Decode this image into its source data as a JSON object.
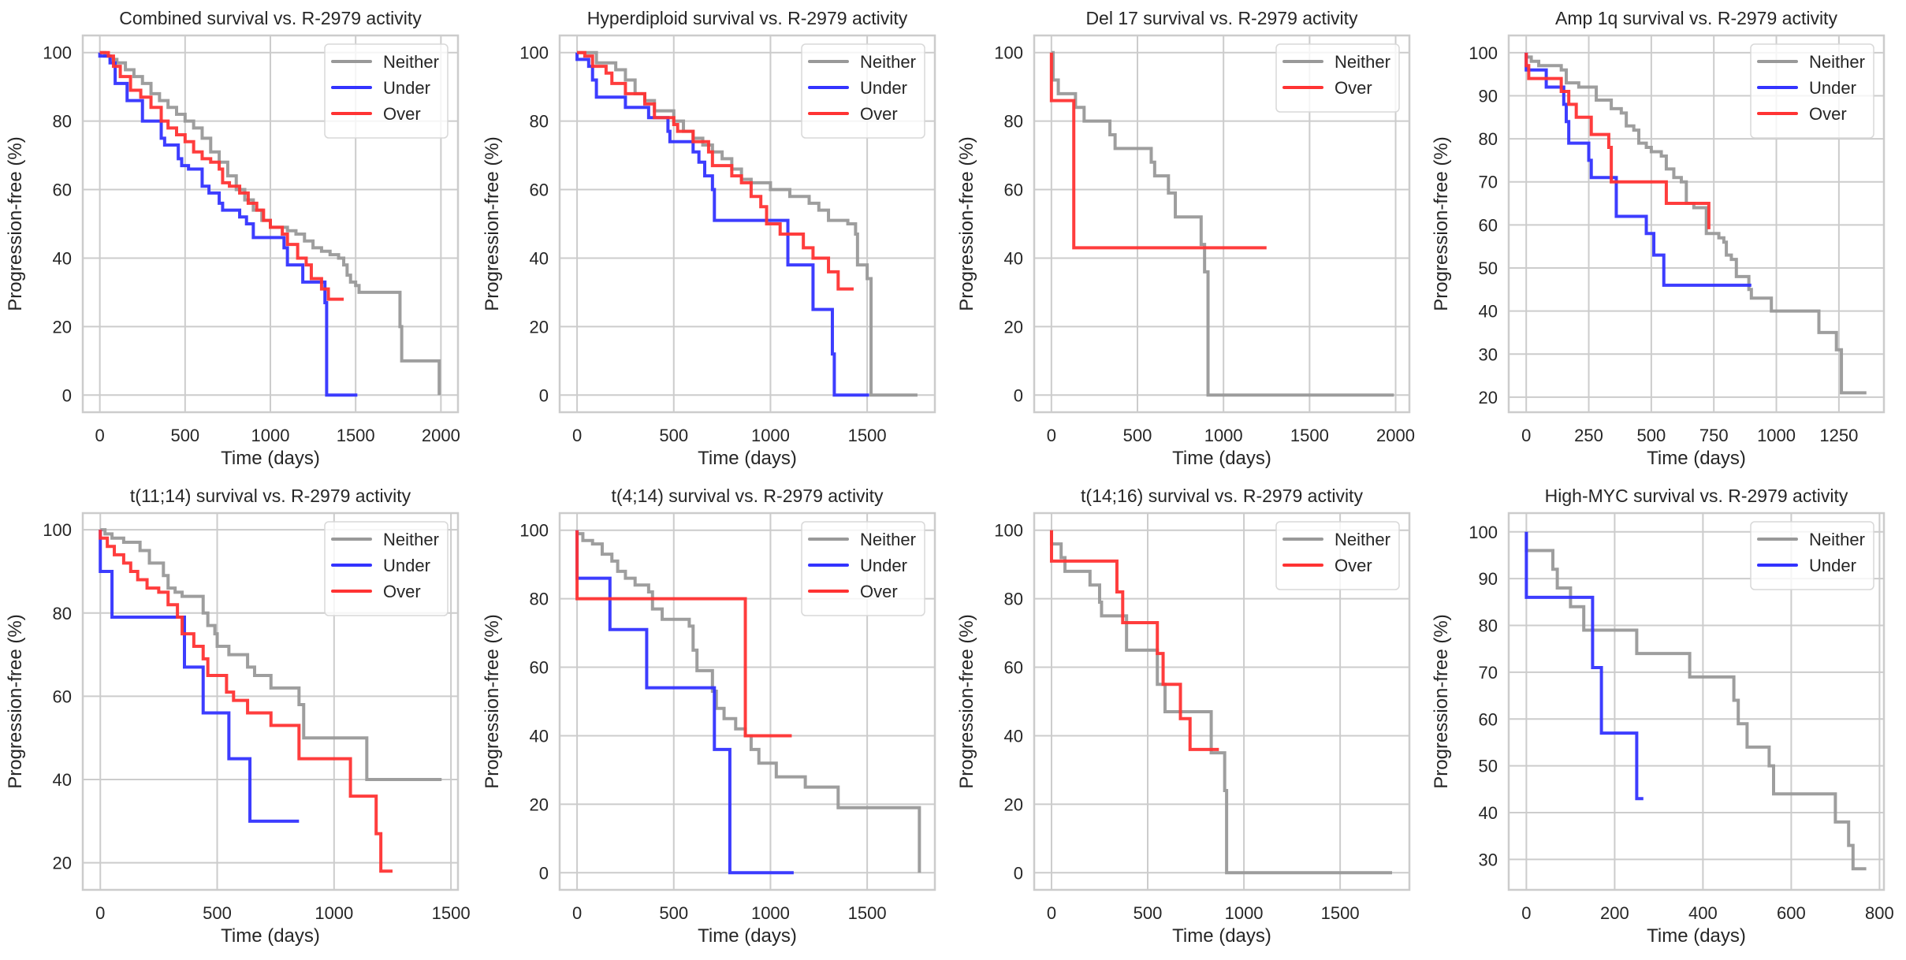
{
  "figure": {
    "shared_xlabel": "Time (days)",
    "shared_ylabel": "Progression-free (%)",
    "colors": {
      "Neither": "#999999",
      "Under": "#3333ff",
      "Over": "#ff3333",
      "grid": "#cccccc",
      "frame": "#cccccc"
    }
  },
  "chart_data": [
    {
      "type": "line",
      "step": true,
      "title": "Combined survival vs. R-2979 activity",
      "xlabel": "Time (days)",
      "ylabel": "Progression-free (%)",
      "xlim": [
        -100,
        2100
      ],
      "ylim": [
        -5,
        105
      ],
      "xticks": [
        0,
        500,
        1000,
        1500,
        2000
      ],
      "yticks": [
        0,
        20,
        40,
        60,
        80,
        100
      ],
      "grid": true,
      "legend": "top-right",
      "series": [
        {
          "name": "Neither",
          "x": [
            0,
            30,
            60,
            100,
            150,
            200,
            250,
            300,
            350,
            400,
            450,
            500,
            550,
            600,
            650,
            700,
            750,
            800,
            850,
            900,
            950,
            1000,
            1050,
            1100,
            1150,
            1200,
            1250,
            1300,
            1350,
            1400,
            1430,
            1450,
            1470,
            1500,
            1520,
            1760,
            1770,
            1990
          ],
          "y": [
            100,
            99,
            98,
            97,
            95,
            93,
            91,
            88,
            86,
            84,
            82,
            80,
            78,
            75,
            71,
            68,
            64,
            60,
            57,
            54,
            51,
            49,
            49,
            48,
            47,
            45,
            43,
            42,
            41,
            40,
            38,
            35,
            33,
            32,
            30,
            20,
            10,
            0
          ]
        },
        {
          "name": "Under",
          "x": [
            0,
            60,
            90,
            160,
            250,
            360,
            380,
            460,
            480,
            520,
            600,
            640,
            700,
            720,
            820,
            860,
            900,
            1050,
            1080,
            1100,
            1190,
            1320,
            1330,
            1510
          ],
          "y": [
            99,
            97,
            91,
            86,
            80,
            75,
            73,
            69,
            67,
            66,
            61,
            59,
            56,
            54,
            52,
            50,
            46,
            46,
            43,
            38,
            33,
            27,
            0,
            0
          ]
        },
        {
          "name": "Over",
          "x": [
            0,
            50,
            80,
            120,
            180,
            240,
            300,
            360,
            400,
            450,
            500,
            550,
            600,
            650,
            700,
            720,
            760,
            820,
            870,
            920,
            960,
            1000,
            1070,
            1100,
            1160,
            1210,
            1240,
            1300,
            1340,
            1430
          ],
          "y": [
            100,
            99,
            96,
            93,
            89,
            87,
            84,
            80,
            78,
            76,
            74,
            71,
            69,
            68,
            66,
            62,
            61,
            59,
            56,
            54,
            51,
            49,
            47,
            44,
            40,
            38,
            34,
            31,
            28,
            28
          ]
        }
      ]
    },
    {
      "type": "line",
      "step": true,
      "title": "Hyperdiploid survival vs. R-2979 activity",
      "xlabel": "Time (days)",
      "ylabel": "Progression-free (%)",
      "xlim": [
        -90,
        1850
      ],
      "ylim": [
        -5,
        105
      ],
      "xticks": [
        0,
        500,
        1000,
        1500
      ],
      "yticks": [
        0,
        20,
        40,
        60,
        80,
        100
      ],
      "grid": true,
      "legend": "top-right",
      "series": [
        {
          "name": "Neither",
          "x": [
            0,
            100,
            200,
            250,
            300,
            350,
            400,
            500,
            550,
            600,
            650,
            700,
            750,
            800,
            850,
            900,
            1000,
            1100,
            1200,
            1250,
            1300,
            1400,
            1440,
            1450,
            1500,
            1520,
            1760
          ],
          "y": [
            100,
            97,
            95,
            92,
            88,
            86,
            83,
            80,
            77,
            75,
            73,
            71,
            69,
            66,
            63,
            62,
            60,
            58,
            56,
            54,
            51,
            50,
            47,
            38,
            34,
            0,
            0
          ]
        },
        {
          "name": "Under",
          "x": [
            0,
            60,
            80,
            100,
            250,
            370,
            470,
            480,
            600,
            630,
            660,
            700,
            710,
            1090,
            1220,
            1320,
            1330,
            1510
          ],
          "y": [
            98,
            96,
            92,
            87,
            84,
            81,
            77,
            74,
            71,
            68,
            64,
            60,
            51,
            38,
            25,
            12,
            0,
            0
          ]
        },
        {
          "name": "Over",
          "x": [
            0,
            40,
            80,
            150,
            180,
            250,
            350,
            400,
            500,
            520,
            600,
            680,
            700,
            800,
            850,
            900,
            950,
            980,
            1050,
            1170,
            1220,
            1300,
            1350,
            1430
          ],
          "y": [
            100,
            99,
            96,
            94,
            91,
            88,
            85,
            81,
            79,
            77,
            74,
            71,
            67,
            64,
            62,
            58,
            55,
            50,
            47,
            43,
            40,
            36,
            31,
            31
          ]
        }
      ]
    },
    {
      "type": "line",
      "step": true,
      "title": "Del 17 survival vs. R-2979 activity",
      "xlabel": "Time (days)",
      "ylabel": "Progression-free (%)",
      "xlim": [
        -100,
        2080
      ],
      "ylim": [
        -5,
        105
      ],
      "xticks": [
        0,
        500,
        1000,
        1500,
        2000
      ],
      "yticks": [
        0,
        20,
        40,
        60,
        80,
        100
      ],
      "grid": true,
      "legend": "top-right",
      "series": [
        {
          "name": "Neither",
          "x": [
            0,
            10,
            40,
            140,
            190,
            340,
            370,
            580,
            600,
            680,
            720,
            870,
            890,
            910,
            1990
          ],
          "y": [
            100,
            92,
            88,
            84,
            80,
            76,
            72,
            68,
            64,
            59,
            52,
            44,
            36,
            0,
            0
          ]
        },
        {
          "name": "Over",
          "x": [
            0,
            130,
            1250
          ],
          "y": [
            86,
            43,
            43
          ]
        }
      ]
    },
    {
      "type": "line",
      "step": true,
      "title": "Amp 1q survival vs. R-2979 activity",
      "xlabel": "Time (days)",
      "ylabel": "Progression-free (%)",
      "xlim": [
        -70,
        1430
      ],
      "ylim": [
        16.5,
        104
      ],
      "xticks": [
        0,
        250,
        500,
        750,
        1000,
        1250
      ],
      "yticks": [
        20,
        30,
        40,
        50,
        60,
        70,
        80,
        90,
        100
      ],
      "grid": true,
      "legend": "top-right",
      "series": [
        {
          "name": "Neither",
          "x": [
            0,
            20,
            50,
            140,
            160,
            210,
            280,
            340,
            380,
            400,
            430,
            450,
            480,
            500,
            540,
            560,
            590,
            620,
            640,
            670,
            720,
            770,
            790,
            800,
            820,
            840,
            890,
            900,
            980,
            1170,
            1240,
            1260,
            1360
          ],
          "y": [
            99,
            98,
            97,
            96,
            93,
            92,
            89,
            87,
            86,
            83,
            82,
            79,
            78,
            77,
            76,
            73,
            71,
            70,
            65,
            64,
            58,
            57,
            56,
            53,
            52,
            48,
            45,
            43,
            40,
            35,
            31,
            21,
            21
          ]
        },
        {
          "name": "Under",
          "x": [
            0,
            80,
            150,
            160,
            170,
            250,
            260,
            360,
            480,
            510,
            550,
            900
          ],
          "y": [
            96,
            92,
            88,
            84,
            79,
            75,
            71,
            62,
            58,
            53,
            46,
            46
          ]
        },
        {
          "name": "Over",
          "x": [
            0,
            10,
            140,
            170,
            200,
            260,
            330,
            340,
            560,
            730
          ],
          "y": [
            97,
            94,
            91,
            88,
            85,
            81,
            78,
            70,
            65,
            59
          ]
        }
      ]
    },
    {
      "type": "line",
      "step": true,
      "title": "t(11;14) survival vs. R-2979 activity",
      "xlabel": "Time (days)",
      "ylabel": "Progression-free (%)",
      "xlim": [
        -75,
        1530
      ],
      "ylim": [
        13.5,
        104
      ],
      "xticks": [
        0,
        500,
        1000,
        1500
      ],
      "yticks": [
        20,
        40,
        60,
        80,
        100
      ],
      "grid": true,
      "legend": "top-right",
      "series": [
        {
          "name": "Neither",
          "x": [
            0,
            20,
            50,
            100,
            170,
            210,
            270,
            290,
            320,
            350,
            440,
            460,
            490,
            500,
            550,
            630,
            660,
            730,
            850,
            870,
            1140,
            1460
          ],
          "y": [
            100,
            99,
            98,
            97,
            95,
            92,
            89,
            86,
            85,
            84,
            80,
            77,
            75,
            72,
            70,
            67,
            65,
            62,
            58,
            50,
            40,
            40
          ]
        },
        {
          "name": "Under",
          "x": [
            0,
            50,
            360,
            440,
            550,
            640,
            850
          ],
          "y": [
            90,
            79,
            67,
            56,
            45,
            30,
            30
          ]
        },
        {
          "name": "Over",
          "x": [
            0,
            30,
            60,
            100,
            130,
            160,
            200,
            250,
            290,
            330,
            350,
            400,
            440,
            460,
            540,
            570,
            630,
            730,
            850,
            1070,
            1180,
            1200,
            1250
          ],
          "y": [
            98,
            96,
            94,
            92,
            90,
            88,
            86,
            85,
            82,
            79,
            75,
            72,
            69,
            65,
            61,
            59,
            56,
            53,
            45,
            36,
            27,
            18,
            18
          ]
        }
      ]
    },
    {
      "type": "line",
      "step": true,
      "title": "t(4;14) survival vs. R-2979 activity",
      "xlabel": "Time (days)",
      "ylabel": "Progression-free (%)",
      "xlim": [
        -90,
        1850
      ],
      "ylim": [
        -5,
        105
      ],
      "xticks": [
        0,
        500,
        1000,
        1500
      ],
      "yticks": [
        0,
        20,
        40,
        60,
        80,
        100
      ],
      "grid": true,
      "legend": "top-right",
      "series": [
        {
          "name": "Neither",
          "x": [
            0,
            30,
            80,
            130,
            180,
            210,
            250,
            300,
            370,
            390,
            440,
            580,
            600,
            620,
            700,
            720,
            760,
            820,
            870,
            900,
            940,
            1030,
            1180,
            1350,
            1770
          ],
          "y": [
            99,
            97,
            96,
            93,
            91,
            88,
            86,
            84,
            82,
            77,
            74,
            72,
            65,
            59,
            53,
            48,
            45,
            42,
            40,
            36,
            32,
            28,
            25,
            19,
            0
          ]
        },
        {
          "name": "Under",
          "x": [
            0,
            170,
            360,
            710,
            790,
            1120
          ],
          "y": [
            86,
            71,
            54,
            36,
            0,
            0
          ]
        },
        {
          "name": "Over",
          "x": [
            0,
            870,
            1110
          ],
          "y": [
            80,
            40,
            40
          ]
        }
      ]
    },
    {
      "type": "line",
      "step": true,
      "title": "t(14;16) survival vs. R-2979 activity",
      "xlabel": "Time (days)",
      "ylabel": "Progression-free (%)",
      "xlim": [
        -90,
        1860
      ],
      "ylim": [
        -5,
        105
      ],
      "xticks": [
        0,
        500,
        1000,
        1500
      ],
      "yticks": [
        0,
        20,
        40,
        60,
        80,
        100
      ],
      "grid": true,
      "legend": "top-right",
      "series": [
        {
          "name": "Neither",
          "x": [
            0,
            50,
            70,
            200,
            250,
            260,
            390,
            550,
            590,
            830,
            900,
            910,
            1770
          ],
          "y": [
            96,
            92,
            88,
            84,
            79,
            75,
            65,
            55,
            47,
            35,
            24,
            0,
            0
          ]
        },
        {
          "name": "Over",
          "x": [
            0,
            340,
            370,
            550,
            580,
            670,
            720,
            870
          ],
          "y": [
            91,
            82,
            73,
            64,
            55,
            45,
            36,
            36
          ]
        }
      ]
    },
    {
      "type": "line",
      "step": true,
      "title": "High-MYC survival vs. R-2979 activity",
      "xlabel": "Time (days)",
      "ylabel": "Progression-free (%)",
      "xlim": [
        -40,
        810
      ],
      "ylim": [
        23.5,
        104
      ],
      "xticks": [
        0,
        200,
        400,
        600,
        800
      ],
      "yticks": [
        30,
        40,
        50,
        60,
        70,
        80,
        90,
        100
      ],
      "grid": true,
      "legend": "top-right",
      "series": [
        {
          "name": "Neither",
          "x": [
            0,
            60,
            70,
            100,
            130,
            250,
            370,
            470,
            480,
            500,
            550,
            560,
            700,
            730,
            740,
            770
          ],
          "y": [
            96,
            92,
            88,
            84,
            79,
            74,
            69,
            64,
            59,
            54,
            50,
            44,
            38,
            33,
            28,
            28
          ]
        },
        {
          "name": "Under",
          "x": [
            0,
            150,
            170,
            250,
            265
          ],
          "y": [
            86,
            71,
            57,
            43,
            43
          ]
        }
      ]
    }
  ]
}
